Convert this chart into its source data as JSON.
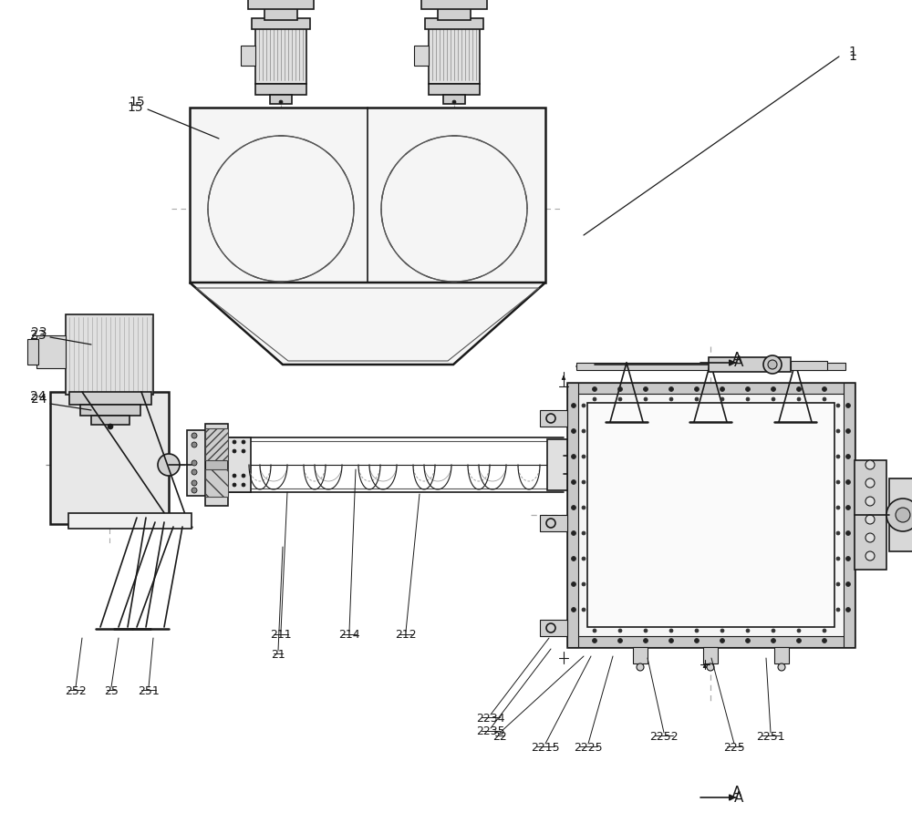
{
  "bg_color": "#ffffff",
  "lc": "#1a1a1a",
  "lc_gray": "#555555",
  "lc_light": "#999999",
  "figsize": [
    10.0,
    9.14
  ],
  "dpi": 100,
  "labels_plain": [
    [
      "1",
      935,
      62,
      10
    ],
    [
      "15",
      148,
      118,
      10
    ],
    [
      "23",
      42,
      368,
      10
    ],
    [
      "24",
      42,
      435,
      10
    ],
    [
      "A",
      810,
      398,
      11
    ],
    [
      "A",
      810,
      876,
      11
    ]
  ],
  "labels_underline": [
    [
      "21",
      305,
      718,
      9
    ],
    [
      "211",
      308,
      697,
      9
    ],
    [
      "212",
      445,
      697,
      9
    ],
    [
      "214",
      383,
      697,
      9
    ],
    [
      "25",
      122,
      758,
      9
    ],
    [
      "251",
      163,
      758,
      9
    ],
    [
      "252",
      83,
      758,
      9
    ],
    [
      "22",
      548,
      808,
      9
    ],
    [
      "2215",
      598,
      820,
      9
    ],
    [
      "2225",
      645,
      820,
      9
    ],
    [
      "2234",
      538,
      788,
      9
    ],
    [
      "2235",
      538,
      803,
      9
    ],
    [
      "2251",
      845,
      808,
      9
    ],
    [
      "2252",
      728,
      808,
      9
    ],
    [
      "225",
      805,
      820,
      9
    ]
  ]
}
